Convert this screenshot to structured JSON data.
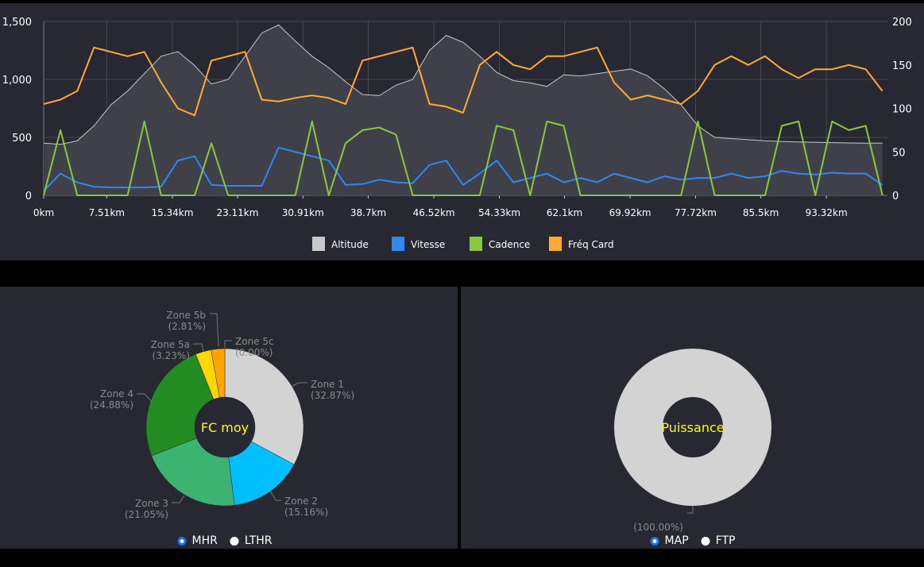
{
  "chart_data": [
    {
      "type": "line",
      "x_unit_suffix": "km",
      "x_tick_labels": [
        "0km",
        "7.51km",
        "15.34km",
        "23.11km",
        "30.91km",
        "38.7km",
        "46.52km",
        "54.33km",
        "62.1km",
        "69.92km",
        "77.72km",
        "85.5km",
        "93.32km"
      ],
      "x_ticks": [
        0,
        7.51,
        15.34,
        23.11,
        30.91,
        38.7,
        46.52,
        54.33,
        62.1,
        69.92,
        77.72,
        85.5,
        93.32
      ],
      "xlim": [
        0,
        100.6
      ],
      "y_left": {
        "ticks": [
          0,
          500,
          1000,
          1500
        ],
        "tick_labels": [
          "0",
          "500",
          "1,000",
          "1,500"
        ],
        "lim": [
          0,
          1500
        ]
      },
      "y_right": {
        "ticks": [
          0,
          50,
          100,
          150,
          200
        ],
        "tick_labels": [
          "0",
          "50",
          "100",
          "150",
          "200"
        ],
        "lim": [
          0,
          200
        ]
      },
      "grid": true,
      "legend_placement": "bottom",
      "x": [
        0,
        2,
        4,
        6,
        8,
        10,
        12,
        14,
        16,
        18,
        20,
        22,
        24,
        26,
        28,
        30,
        32,
        34,
        36,
        38,
        40,
        42,
        44,
        46,
        48,
        50,
        52,
        54,
        56,
        58,
        60,
        62,
        64,
        66,
        68,
        70,
        72,
        74,
        76,
        78,
        80,
        82,
        84,
        86,
        88,
        90,
        92,
        94,
        96,
        98,
        100
      ],
      "series": [
        {
          "name": "Altitude",
          "axis": "left",
          "style": "area",
          "color": "#c8c8cc",
          "values": [
            450,
            440,
            470,
            600,
            780,
            900,
            1050,
            1200,
            1240,
            1120,
            960,
            1000,
            1200,
            1400,
            1470,
            1330,
            1200,
            1100,
            980,
            870,
            860,
            950,
            1000,
            1250,
            1380,
            1320,
            1200,
            1060,
            990,
            970,
            940,
            1040,
            1030,
            1050,
            1070,
            1090,
            1030,
            920,
            780,
            600,
            500,
            490,
            480,
            470,
            465,
            460,
            458,
            455,
            452,
            450,
            450
          ]
        },
        {
          "name": "Vitesse",
          "axis": "right",
          "color": "#2f87f0",
          "values": [
            5,
            25,
            15,
            10,
            9,
            9,
            9,
            10,
            40,
            45,
            12,
            11,
            11,
            11,
            55,
            50,
            45,
            40,
            12,
            13,
            18,
            15,
            14,
            35,
            40,
            12,
            25,
            40,
            15,
            20,
            25,
            15,
            20,
            15,
            25,
            20,
            15,
            22,
            18,
            20,
            20,
            25,
            20,
            22,
            28,
            25,
            24,
            26,
            25,
            25,
            12
          ]
        },
        {
          "name": "Cadence",
          "axis": "right",
          "color": "#8cc63f",
          "values": [
            0,
            75,
            0,
            0,
            0,
            0,
            85,
            0,
            0,
            0,
            60,
            0,
            0,
            0,
            0,
            0,
            85,
            0,
            60,
            75,
            78,
            70,
            0,
            0,
            0,
            0,
            0,
            80,
            75,
            0,
            85,
            80,
            0,
            0,
            0,
            0,
            0,
            0,
            0,
            85,
            0,
            0,
            0,
            0,
            80,
            85,
            0,
            85,
            75,
            80,
            0
          ]
        },
        {
          "name": "Fréq Card",
          "axis": "right",
          "color": "#ffaa33",
          "values": [
            105,
            110,
            120,
            170,
            165,
            160,
            165,
            130,
            100,
            92,
            155,
            160,
            165,
            110,
            108,
            112,
            115,
            112,
            105,
            155,
            160,
            165,
            170,
            105,
            102,
            95,
            150,
            165,
            150,
            145,
            160,
            160,
            165,
            170,
            130,
            110,
            115,
            110,
            105,
            120,
            150,
            160,
            150,
            160,
            145,
            135,
            145,
            145,
            150,
            145,
            120
          ]
        }
      ]
    },
    {
      "type": "pie",
      "donut": true,
      "center_label": "FC moy",
      "slices": [
        {
          "label": "Zone 1",
          "value": 32.87,
          "pct_label": "(32.87%)",
          "color": "#d3d3d3"
        },
        {
          "label": "Zone 2",
          "value": 15.16,
          "pct_label": "(15.16%)",
          "color": "#00bfff"
        },
        {
          "label": "Zone 3",
          "value": 21.05,
          "pct_label": "(21.05%)",
          "color": "#3cb371"
        },
        {
          "label": "Zone 4",
          "value": 24.88,
          "pct_label": "(24.88%)",
          "color": "#228b22"
        },
        {
          "label": "Zone 5a",
          "value": 3.23,
          "pct_label": "(3.23%)",
          "color": "#ffd700"
        },
        {
          "label": "Zone 5b",
          "value": 2.81,
          "pct_label": "(2.81%)",
          "color": "#ffa500"
        },
        {
          "label": "Zone 5c",
          "value": 0.0,
          "pct_label": "(0.00%)",
          "color": "#ff4500"
        }
      ]
    },
    {
      "type": "pie",
      "donut": true,
      "center_label": "Puissance",
      "slices": [
        {
          "label": "",
          "value": 100,
          "pct_label": "(100.00%)",
          "color": "#d3d3d3"
        }
      ]
    }
  ],
  "hr_options": {
    "selected": "MHR",
    "items": [
      "MHR",
      "LTHR"
    ]
  },
  "power_options": {
    "selected": "MAP",
    "items": [
      "MAP",
      "FTP"
    ]
  },
  "colors": {
    "panel_bg": "#282833",
    "center_label": "#ffff00",
    "label_text": "#8a8a8a"
  }
}
